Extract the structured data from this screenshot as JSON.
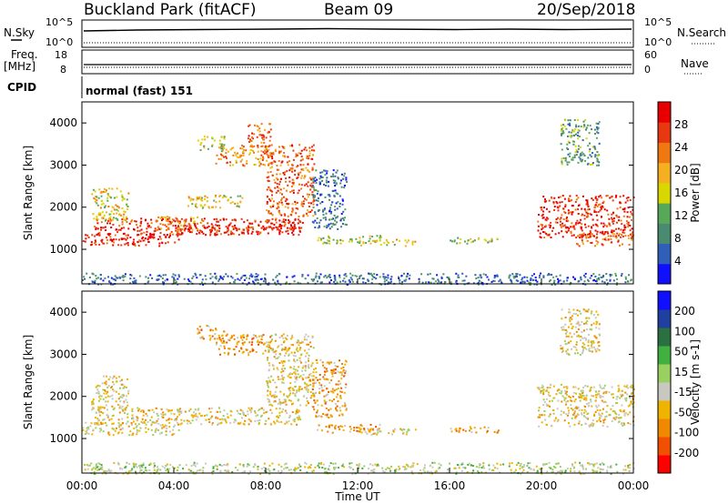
{
  "header": {
    "site": "Buckland Park (fitACF)",
    "beam": "Beam 09",
    "date": "20/Sep/2018"
  },
  "side_labels": {
    "nsky": "N.Sky",
    "freq_line1": "Freq.",
    "freq_line2": "[MHz]",
    "cpid": "CPID",
    "nsearch": "N.Search",
    "nave": "Nave",
    "mode": "normal (fast) 151"
  },
  "noise_axis": {
    "left_top": "10^5",
    "left_bottom": "10^0",
    "right_top": "10^5",
    "right_bottom": "10^0"
  },
  "freq_axis": {
    "left_top": "18",
    "left_bottom": "8",
    "right_top": "60",
    "right_bottom": "0"
  },
  "colors": {
    "power": [
      "#1010ff",
      "#2f5fb8",
      "#4a8a70",
      "#58a85a",
      "#d8d800",
      "#f4b020",
      "#f07810",
      "#e83810",
      "#e80000"
    ],
    "velocity": [
      "#ff0000",
      "#f05000",
      "#f08800",
      "#f0b400",
      "#c8c8c0",
      "#9ad060",
      "#40b040",
      "#2a7040",
      "#2040a0",
      "#1010ff"
    ]
  },
  "chart_data": [
    {
      "type": "heatmap",
      "title": "",
      "ylabel": "Slant Range [km]",
      "xlabel": "",
      "ylim": [
        180,
        4500
      ],
      "xlim": [
        0,
        24
      ],
      "yticks": [
        "1000",
        "2000",
        "3000",
        "4000"
      ],
      "colorbar_label": "Power [dB]",
      "colorbar_ticks": [
        "4",
        "8",
        "12",
        "16",
        "20",
        "24",
        "28"
      ],
      "regions": [
        {
          "x": [
            0.0,
            4.2
          ],
          "y": [
            1100,
            1400
          ],
          "level": 8
        },
        {
          "x": [
            0.5,
            9.5
          ],
          "y": [
            1350,
            1750
          ],
          "level": 8
        },
        {
          "x": [
            4.0,
            8.0
          ],
          "y": [
            1400,
            1550
          ],
          "level": 8
        },
        {
          "x": [
            8.0,
            9.6
          ],
          "y": [
            1450,
            1750
          ],
          "level": 8
        },
        {
          "x": [
            8.0,
            10.1
          ],
          "y": [
            1800,
            3500
          ],
          "level": 7
        },
        {
          "x": [
            5.8,
            8.2
          ],
          "y": [
            3000,
            3500
          ],
          "level": 6
        },
        {
          "x": [
            5.0,
            6.2
          ],
          "y": [
            3350,
            3700
          ],
          "level": 4
        },
        {
          "x": [
            7.2,
            8.2
          ],
          "y": [
            3450,
            4000
          ],
          "level": 7
        },
        {
          "x": [
            4.5,
            7.0
          ],
          "y": [
            2000,
            2300
          ],
          "level": 5
        },
        {
          "x": [
            0.4,
            2.0
          ],
          "y": [
            1700,
            2500
          ],
          "level": 5
        },
        {
          "x": [
            3.2,
            5.0
          ],
          "y": [
            1450,
            1800
          ],
          "level": 6
        },
        {
          "x": [
            10.2,
            13.0
          ],
          "y": [
            1150,
            1350
          ],
          "level": 4
        },
        {
          "x": [
            10.0,
            11.5
          ],
          "y": [
            1500,
            2900
          ],
          "level": 2
        },
        {
          "x": [
            12.0,
            14.5
          ],
          "y": [
            1100,
            1250
          ],
          "level": 5
        },
        {
          "x": [
            16.0,
            18.2
          ],
          "y": [
            1150,
            1300
          ],
          "level": 4
        },
        {
          "x": [
            19.8,
            24.0
          ],
          "y": [
            1300,
            2300
          ],
          "level": 8
        },
        {
          "x": [
            21.5,
            24.0
          ],
          "y": [
            1100,
            1400
          ],
          "level": 7
        },
        {
          "x": [
            20.8,
            22.5
          ],
          "y": [
            3000,
            4100
          ],
          "level": 3
        },
        {
          "x": [
            0.0,
            24.0
          ],
          "y": [
            180,
            450
          ],
          "level": 2
        }
      ]
    },
    {
      "type": "heatmap",
      "title": "",
      "ylabel": "Slant Range [km]",
      "xlabel": "Time UT",
      "ylim": [
        180,
        4500
      ],
      "xlim": [
        0,
        24
      ],
      "yticks": [
        "1000",
        "2000",
        "3000",
        "4000"
      ],
      "xticks": [
        "00:00",
        "04:00",
        "08:00",
        "12:00",
        "16:00",
        "20:00",
        "00:00"
      ],
      "colorbar_label": "Velocity [m s-1]",
      "colorbar_ticks": [
        "-200",
        "-100",
        "-50",
        "-15",
        "15",
        "50",
        "100",
        "200"
      ],
      "regions": [
        {
          "x": [
            0.0,
            4.2
          ],
          "y": [
            1100,
            1400
          ],
          "level": 4
        },
        {
          "x": [
            0.5,
            9.5
          ],
          "y": [
            1350,
            1750
          ],
          "level": 4
        },
        {
          "x": [
            8.0,
            10.1
          ],
          "y": [
            1800,
            3500
          ],
          "level": 4
        },
        {
          "x": [
            5.8,
            8.2
          ],
          "y": [
            3000,
            3500
          ],
          "level": 3
        },
        {
          "x": [
            5.0,
            6.2
          ],
          "y": [
            3350,
            3700
          ],
          "level": 3
        },
        {
          "x": [
            0.4,
            2.0
          ],
          "y": [
            1700,
            2500
          ],
          "level": 4
        },
        {
          "x": [
            10.2,
            13.0
          ],
          "y": [
            1150,
            1350
          ],
          "level": 3
        },
        {
          "x": [
            10.0,
            11.5
          ],
          "y": [
            1500,
            2900
          ],
          "level": 3
        },
        {
          "x": [
            12.0,
            14.5
          ],
          "y": [
            1100,
            1250
          ],
          "level": 4
        },
        {
          "x": [
            16.0,
            18.2
          ],
          "y": [
            1150,
            1300
          ],
          "level": 3
        },
        {
          "x": [
            19.8,
            24.0
          ],
          "y": [
            1300,
            2300
          ],
          "level": 4
        },
        {
          "x": [
            20.8,
            22.5
          ],
          "y": [
            3000,
            4100
          ],
          "level": 4
        },
        {
          "x": [
            0.0,
            24.0
          ],
          "y": [
            180,
            450
          ],
          "level": 5
        }
      ]
    }
  ]
}
